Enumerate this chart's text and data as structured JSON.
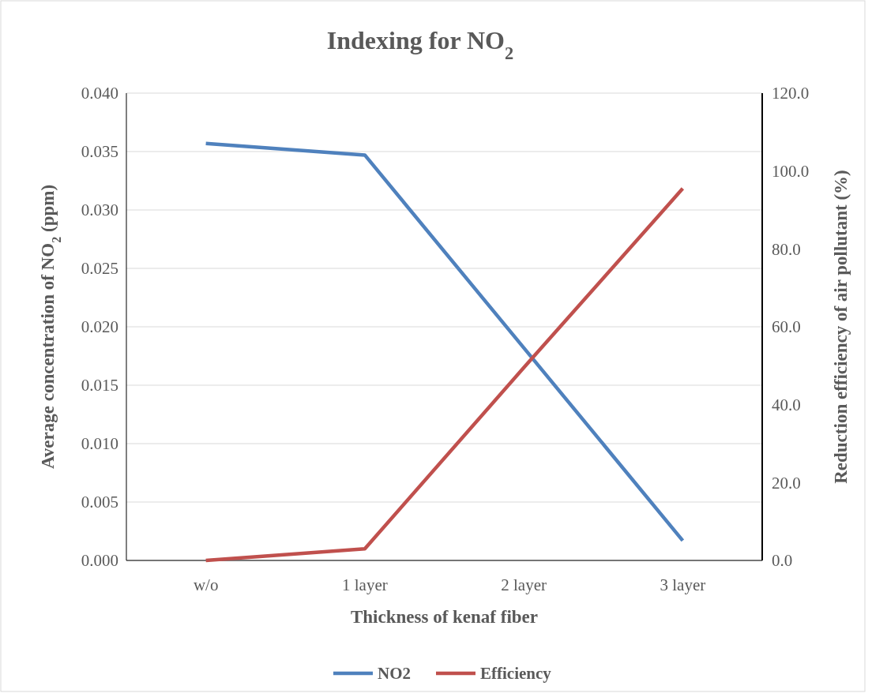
{
  "chart_data": {
    "type": "line",
    "title": "Indexing for NO$_{2}$",
    "xlabel": "Thickness of kenaf fiber",
    "ylabel": "Average concentration of NO$_{2}$ (ppm)",
    "y2label": "Reduction efficiency of air pollutant (%)",
    "categories": [
      "w/o",
      "1 layer",
      "2 layer",
      "3 layer"
    ],
    "series": [
      {
        "name": "NO2",
        "color": "#4f81bd",
        "values": [
          0.0357,
          0.0347,
          0.0182,
          0.0017
        ]
      },
      {
        "name": "Efficiency",
        "color": "#c0504d",
        "values": [
          0,
          3.0,
          49.5,
          95.5
        ],
        "axis": "y2"
      }
    ],
    "ylim": [
      0,
      0.04
    ],
    "yticks": [
      {
        "value": 0,
        "label": "0.000"
      },
      {
        "value": 0.005,
        "label": "0.005"
      },
      {
        "value": 0.01,
        "label": "0.010"
      },
      {
        "value": 0.015,
        "label": "0.015"
      },
      {
        "value": 0.02,
        "label": "0.020"
      },
      {
        "value": 0.025,
        "label": "0.025"
      },
      {
        "value": 0.03,
        "label": "0.030"
      },
      {
        "value": 0.035,
        "label": "0.035"
      },
      {
        "value": 0.04,
        "label": "0.040"
      }
    ],
    "y2lim": [
      0,
      120
    ],
    "y2ticks": [
      {
        "value": 0,
        "label": "0.0"
      },
      {
        "value": 20,
        "label": "20.0"
      },
      {
        "value": 40,
        "label": "40.0"
      },
      {
        "value": 60,
        "label": "60.0"
      },
      {
        "value": 80,
        "label": "80.0"
      },
      {
        "value": 100,
        "label": "100.0"
      },
      {
        "value": 120,
        "label": "120.0"
      }
    ],
    "grid": "y",
    "legend": "bottom",
    "marker": "none",
    "line_style": "solid"
  }
}
